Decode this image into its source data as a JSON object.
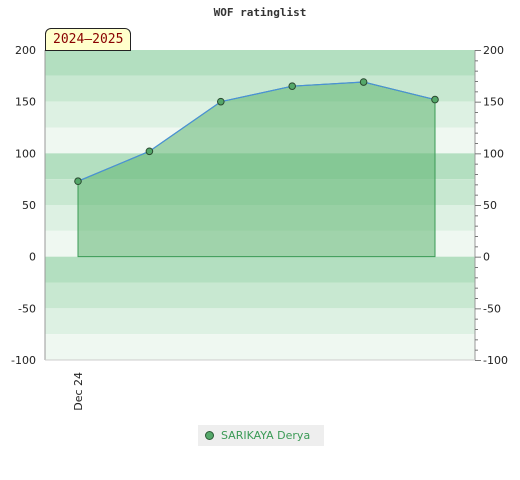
{
  "chart_data": {
    "type": "area",
    "title": "WOF ratinglist",
    "season_badge": "2024–2025",
    "ylim": [
      -100,
      200
    ],
    "y_ticks": [
      "200",
      "150",
      "100",
      "50",
      "0",
      "-50",
      "-100"
    ],
    "x_tick_labels": [
      "Dec 24"
    ],
    "grid": true,
    "legend_position": "bottom",
    "series": [
      {
        "name": "SARIKAYA Derya",
        "values": [
          73,
          102,
          150,
          165,
          169,
          152
        ]
      }
    ],
    "colors": {
      "fill": "#5fb471",
      "line": "#4a90d9",
      "point": "#55a86a",
      "legend_text": "#3a9a55"
    }
  }
}
